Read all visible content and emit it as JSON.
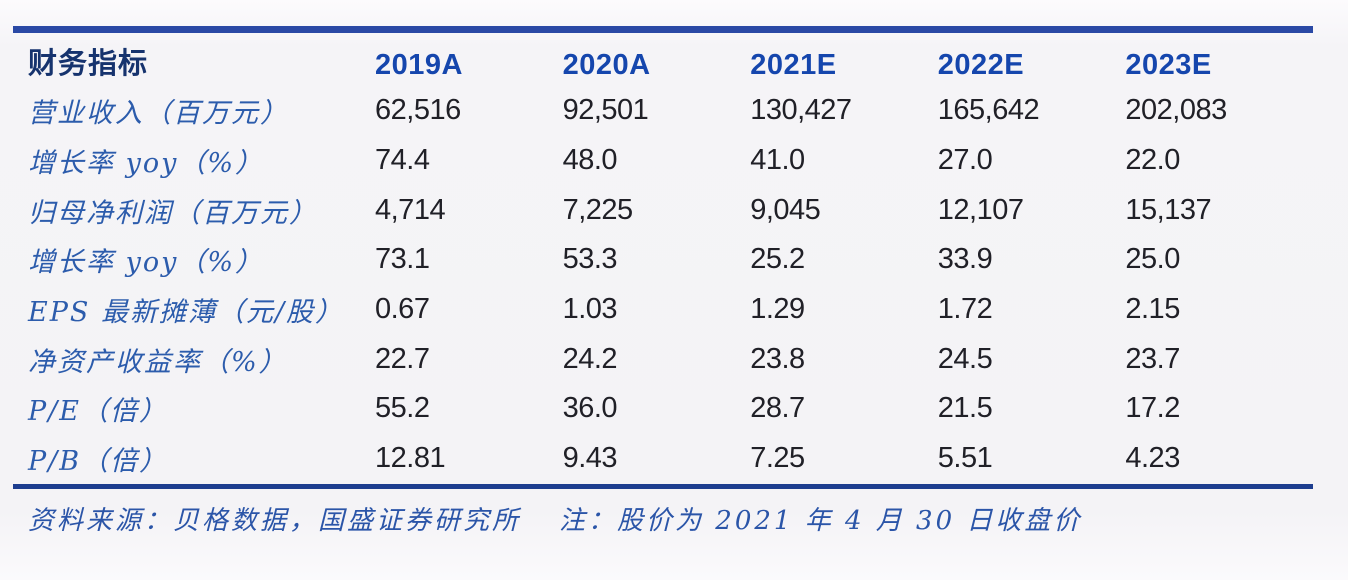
{
  "table": {
    "header": {
      "label": "财务指标",
      "columns": [
        "2019A",
        "2020A",
        "2021E",
        "2022E",
        "2023E"
      ]
    },
    "rows": [
      {
        "label": "营业收入（百万元）",
        "values": [
          "62,516",
          "92,501",
          "130,427",
          "165,642",
          "202,083"
        ]
      },
      {
        "label": "增长率 yoy（%）",
        "values": [
          "74.4",
          "48.0",
          "41.0",
          "27.0",
          "22.0"
        ]
      },
      {
        "label": "归母净利润（百万元）",
        "values": [
          "4,714",
          "7,225",
          "9,045",
          "12,107",
          "15,137"
        ]
      },
      {
        "label": "增长率 yoy（%）",
        "values": [
          "73.1",
          "53.3",
          "25.2",
          "33.9",
          "25.0"
        ]
      },
      {
        "label": "EPS 最新摊薄（元/股）",
        "values": [
          "0.67",
          "1.03",
          "1.29",
          "1.72",
          "2.15"
        ]
      },
      {
        "label": "净资产收益率（%）",
        "values": [
          "22.7",
          "24.2",
          "23.8",
          "24.5",
          "23.7"
        ]
      },
      {
        "label": "P/E（倍）",
        "values": [
          "55.2",
          "36.0",
          "28.7",
          "21.5",
          "17.2"
        ]
      },
      {
        "label": "P/B（倍）",
        "values": [
          "12.81",
          "9.43",
          "7.25",
          "5.51",
          "4.23"
        ]
      }
    ]
  },
  "footer": {
    "source": "资料来源：贝格数据，国盛证券研究所",
    "note": "注：股价为 2021 年 4 月 30 日收盘价"
  },
  "colors": {
    "border_top": "#2a49a5",
    "border_bottom": "#1d3d8f",
    "header_label": "#16336e",
    "year_header": "#1546ad",
    "row_label": "#2c5cac",
    "value_text": "#202027",
    "footer_text": "#2b55a8",
    "background": "#f4f3f6"
  },
  "chart_data": {
    "type": "table",
    "title": "财务指标",
    "categories": [
      "2019A",
      "2020A",
      "2021E",
      "2022E",
      "2023E"
    ],
    "series": [
      {
        "name": "营业收入（百万元）",
        "values": [
          62516,
          92501,
          130427,
          165642,
          202083
        ]
      },
      {
        "name": "增长率 yoy（%）",
        "values": [
          74.4,
          48.0,
          41.0,
          27.0,
          22.0
        ]
      },
      {
        "name": "归母净利润（百万元）",
        "values": [
          4714,
          7225,
          9045,
          12107,
          15137
        ]
      },
      {
        "name": "增长率 yoy（%）",
        "values": [
          73.1,
          53.3,
          25.2,
          33.9,
          25.0
        ]
      },
      {
        "name": "EPS 最新摊薄（元/股）",
        "values": [
          0.67,
          1.03,
          1.29,
          1.72,
          2.15
        ]
      },
      {
        "name": "净资产收益率（%）",
        "values": [
          22.7,
          24.2,
          23.8,
          24.5,
          23.7
        ]
      },
      {
        "name": "P/E（倍）",
        "values": [
          55.2,
          36.0,
          28.7,
          21.5,
          17.2
        ]
      },
      {
        "name": "P/B（倍）",
        "values": [
          12.81,
          9.43,
          7.25,
          5.51,
          4.23
        ]
      }
    ],
    "note": "股价为 2021 年 4 月 30 日收盘价",
    "source": "贝格数据，国盛证券研究所"
  }
}
